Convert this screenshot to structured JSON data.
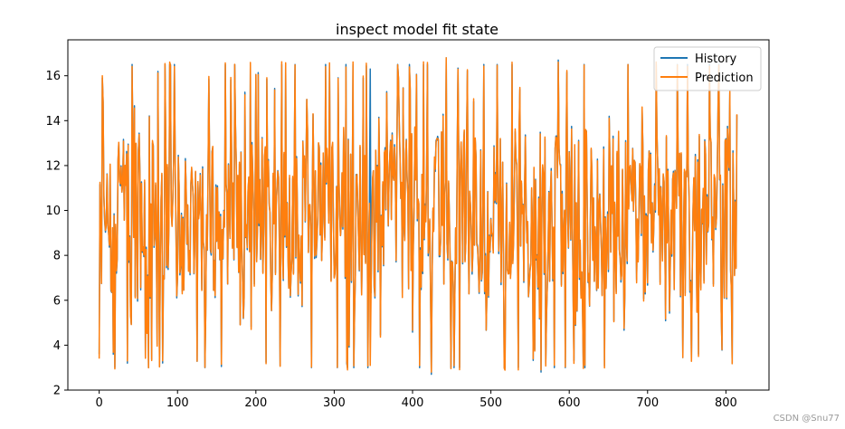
{
  "chart_data": {
    "type": "line",
    "title": "inspect model fit state",
    "xlabel": "",
    "ylabel": "",
    "xlim": [
      -40,
      855
    ],
    "ylim": [
      2,
      17.6
    ],
    "x_ticks": [
      0,
      100,
      200,
      300,
      400,
      500,
      600,
      700,
      800
    ],
    "y_ticks": [
      2,
      4,
      6,
      8,
      10,
      12,
      14,
      16
    ],
    "grid": false,
    "legend_position": "top-right",
    "n_points": 815,
    "series": [
      {
        "name": "History",
        "color": "#1f77b4",
        "approx_range": [
          2.7,
          16.7
        ],
        "notable_values": [
          {
            "x": 0,
            "y": 3.6
          },
          {
            "x": 4,
            "y": 15.9
          },
          {
            "x": 18,
            "y": 3.6
          },
          {
            "x": 36,
            "y": 3.2
          },
          {
            "x": 346,
            "y": 3.0
          },
          {
            "x": 346,
            "y": 16.3
          },
          {
            "x": 424,
            "y": 2.7
          },
          {
            "x": 443,
            "y": 16.8
          },
          {
            "x": 564,
            "y": 2.8
          },
          {
            "x": 586,
            "y": 16.7
          },
          {
            "x": 765,
            "y": 3.6
          },
          {
            "x": 815,
            "y": 13.1
          }
        ]
      },
      {
        "name": "Prediction",
        "color": "#ff7f0e",
        "approx_range": [
          2.8,
          16.8
        ],
        "notable_values": [
          {
            "x": 0,
            "y": 3.4
          },
          {
            "x": 4,
            "y": 16.0
          },
          {
            "x": 36,
            "y": 3.3
          },
          {
            "x": 346,
            "y": 3.1
          },
          {
            "x": 424,
            "y": 2.8
          },
          {
            "x": 443,
            "y": 16.8
          },
          {
            "x": 564,
            "y": 2.9
          },
          {
            "x": 586,
            "y": 16.6
          },
          {
            "x": 815,
            "y": 13.1
          }
        ]
      }
    ]
  },
  "watermark": "CSDN @Snu77"
}
